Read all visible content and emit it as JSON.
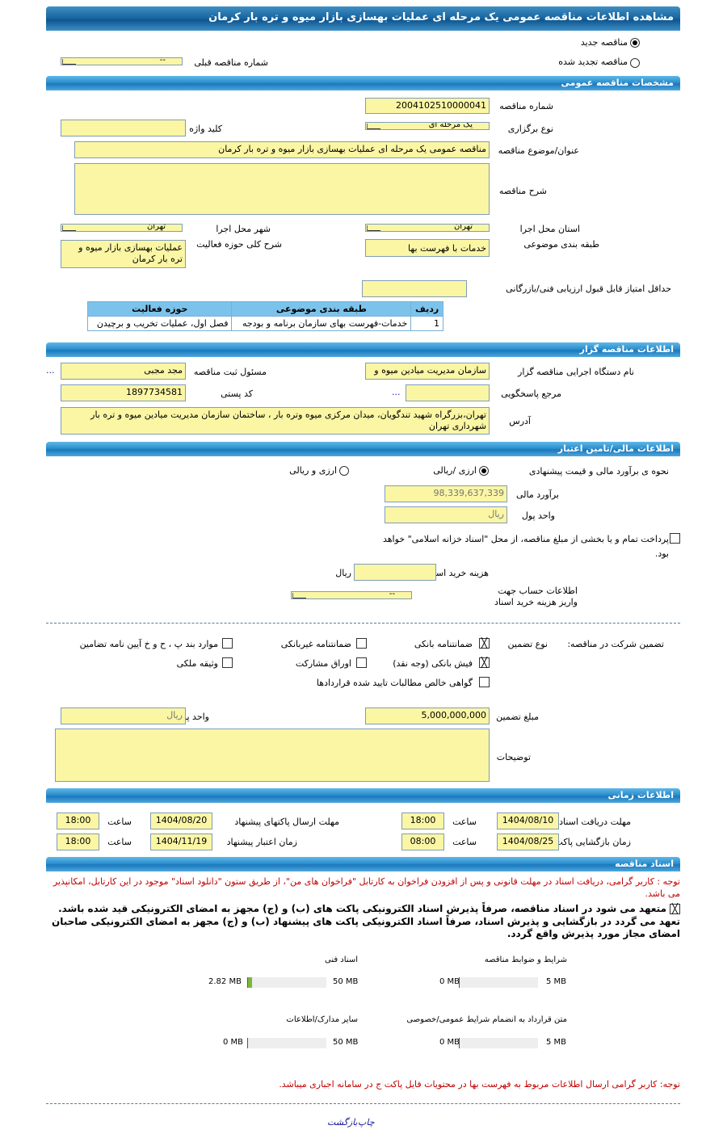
{
  "title": "مشاهده اطلاعات مناقصه عمومی یک مرحله ای عملیات بهسازی بازار میوه و تره بار کرمان",
  "tender_kind": {
    "new_label": "مناقصه جدید",
    "renewed_label": "مناقصه تجدید شده",
    "selected": "new",
    "prev_label": "شماره مناقصه قبلی",
    "prev_value": "--"
  },
  "general": {
    "header": "مشخصات مناقصه عمومی",
    "number_label": "شماره مناقصه",
    "number": "2004102510000041",
    "type_label": "نوع برگزاری",
    "type_value": "یک مرحله ای",
    "keyword_label": "کلید واژه",
    "keyword": "",
    "subject_label": "عنوان/موضوع مناقصه",
    "subject": "مناقصه عمومی یک مرحله ای عملیات بهسازی بازار میوه و تره بار کرمان",
    "desc_label": "شرح مناقصه",
    "desc": "",
    "province_label": "استان محل اجرا",
    "province": "تهران",
    "city_label": "شهر محل اجرا",
    "city": "تهران",
    "category_label": "طبقه بندی موضوعی",
    "category": "خدمات با فهرست بها",
    "activity_label": "شرح کلی حوزه فعالیت",
    "activity": "عملیات بهسازی بازار میوه و تره بار کرمان",
    "minscore_label": "حداقل امتیاز قابل قبول ارزیابی فنی/بازرگانی",
    "minscore": "",
    "table": {
      "headers": [
        "ردیف",
        "طبقه بندی موضوعی",
        "حوزه فعالیت"
      ],
      "rows": [
        [
          "1",
          "خدمات-فهرست بهای سازمان برنامه و بودجه",
          "فصل اول، عملیات تخریب و برچیدن"
        ]
      ]
    }
  },
  "organizer": {
    "header": "اطلاعات مناقصه گزار",
    "org_label": "نام دستگاه اجرایی مناقصه گزار",
    "org": "سازمان مدیریت میادین میوه و",
    "registrar_label": "مسئول ثبت مناقصه",
    "registrar": "مجد مجبی",
    "more": "...",
    "ref_label": "مرجع پاسخگویی",
    "ref": "",
    "postal_label": "کد پستی",
    "postal": "1897734581",
    "address_label": "آدرس",
    "address": "تهران،بزرگراه شهید تندگویان، میدان مرکزی میوه وتره بار ، ساختمان سازمان مدیریت میادین میوه و تره بار شهرداری تهران"
  },
  "finance": {
    "header": "اطلاعات مالی/تامین اعتبار",
    "method_label": "نحوه ی برآورد مالی و قیمت پیشنهادی",
    "opt1": "ارزی /ریالی",
    "opt2": "ارزی و ریالی",
    "selected": "opt1",
    "estimate_label": "برآورد مالی",
    "estimate": "98,339,637,339",
    "currency_label": "واحد پول",
    "currency": "ریال",
    "treasury_text": "پرداخت تمام و یا بخشی از مبلغ مناقصه، از محل \"اسناد خزانه اسلامی\" خواهد بود.",
    "treasury_checked": false,
    "doccost_label": "هزینه خرید اسناد",
    "doccost": "",
    "doccost_unit": "ریال",
    "account_label": "اطلاعات حساب جهت واریز هزینه خرید اسناد",
    "account": "--"
  },
  "guarantee": {
    "label": "تضمین شرکت در مناقصه:",
    "type_label": "نوع تضمین",
    "options": [
      {
        "label": "ضمانتنامه بانکی",
        "checked": true
      },
      {
        "label": "ضمانتنامه غیربانکی",
        "checked": false
      },
      {
        "label": "موارد بند پ ، ح و خ آیین نامه تضامین",
        "checked": false
      },
      {
        "label": "فیش بانکی (وجه نقد)",
        "checked": true
      },
      {
        "label": "اوراق مشارکت",
        "checked": false
      },
      {
        "label": "وثیقه ملکی",
        "checked": false
      },
      {
        "label": "گواهی خالص مطالبات تایید شده قراردادها",
        "checked": false
      }
    ],
    "amount_label": "مبلغ تضمین",
    "amount": "5,000,000,000",
    "unit_label": "واحد پول",
    "unit": "ریال",
    "notes_label": "توضیحات",
    "notes": ""
  },
  "timing": {
    "header": "اطلاعات زمانی",
    "time_label": "ساعت",
    "doc_receive_label": "مهلت دریافت اسناد",
    "doc_receive_date": "1404/08/10",
    "doc_receive_time": "18:00",
    "send_label": "مهلت ارسال پاکتهای پیشنهاد",
    "send_date": "1404/08/20",
    "send_time": "18:00",
    "open_label": "زمان بازگشایی پاکت ها",
    "open_date": "1404/08/25",
    "open_time": "08:00",
    "valid_label": "زمان اعتبار پیشنهاد",
    "valid_date": "1404/11/19",
    "valid_time": "18:00"
  },
  "documents": {
    "header": "اسناد مناقصه",
    "note1": "توجه : کاربر گرامی، دریافت اسناد در مهلت قانونی و پس از افزودن فراخوان به کارتابل \"فراخوان های من\"، از طریق ستون \"دانلود اسناد\" موجود در این کارتابل، امکانپذیر می باشد.",
    "commit1": "متعهد می شود در اسناد مناقصه، صرفاً پذیرش اسناد الکترونیکی پاکت های (ب) و (ج) مجهز به امضای الکترونیکی قید شده باشد.",
    "commit2": "تعهد می گردد در بازگشایی و پذیرش اسناد، صرفاً اسناد الکترونیکی پاکت های پیشنهاد (ب) و (ج) مجهز به امضای الکترونیکی صاحبان امضای مجاز مورد پذیرش واقع گردد.",
    "files": [
      {
        "label": "شرایط و ضوابط مناقصه",
        "used": "0 MB",
        "max": "5 MB",
        "fraction": 0
      },
      {
        "label": "اسناد فنی",
        "used": "2.82 MB",
        "max": "50 MB",
        "fraction": 0.0564
      },
      {
        "label": "متن قرارداد به انضمام شرایط عمومی/خصوصی",
        "used": "0 MB",
        "max": "5 MB",
        "fraction": 0
      },
      {
        "label": "سایر مدارک/اطلاعات",
        "used": "0 MB",
        "max": "50 MB",
        "fraction": 0
      }
    ],
    "note2": "توجه: کاربر گرامی ارسال اطلاعات مربوط به فهرست بها در محتویات فایل پاکت ج در سامانه اجباری میباشد."
  },
  "footer": {
    "print": "چاپ",
    "back": "بازگشت"
  }
}
